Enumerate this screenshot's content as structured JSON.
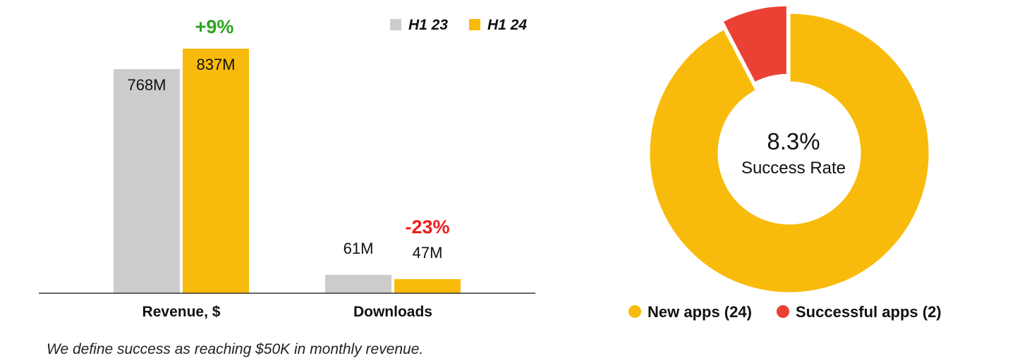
{
  "chart_data": [
    {
      "type": "bar",
      "categories": [
        "Revenue, $",
        "Downloads"
      ],
      "series": [
        {
          "name": "H1 23",
          "values": [
            768,
            61
          ],
          "labels": [
            "768M",
            "61M"
          ],
          "color": "#cccccc"
        },
        {
          "name": "H1 24",
          "values": [
            837,
            47
          ],
          "labels": [
            "837M",
            "47M"
          ],
          "color": "#f9bb0b"
        }
      ],
      "annotations": [
        {
          "category": "Revenue, $",
          "text": "+9%",
          "color": "#2ea31f"
        },
        {
          "category": "Downloads",
          "text": "-23%",
          "color": "#ee1c1c"
        }
      ],
      "legend_position": "top-right",
      "title": "",
      "xlabel": "",
      "ylabel": ""
    },
    {
      "type": "pie",
      "variant": "donut",
      "center_value": "8.3%",
      "center_label": "Success Rate",
      "slices": [
        {
          "name": "New apps (24)",
          "value": 24,
          "color": "#f9bb0b"
        },
        {
          "name": "Successful apps (2)",
          "value": 2,
          "color": "#eb4135"
        }
      ],
      "legend_position": "bottom"
    }
  ],
  "footnote": "We define success as reaching $50K in monthly revenue."
}
